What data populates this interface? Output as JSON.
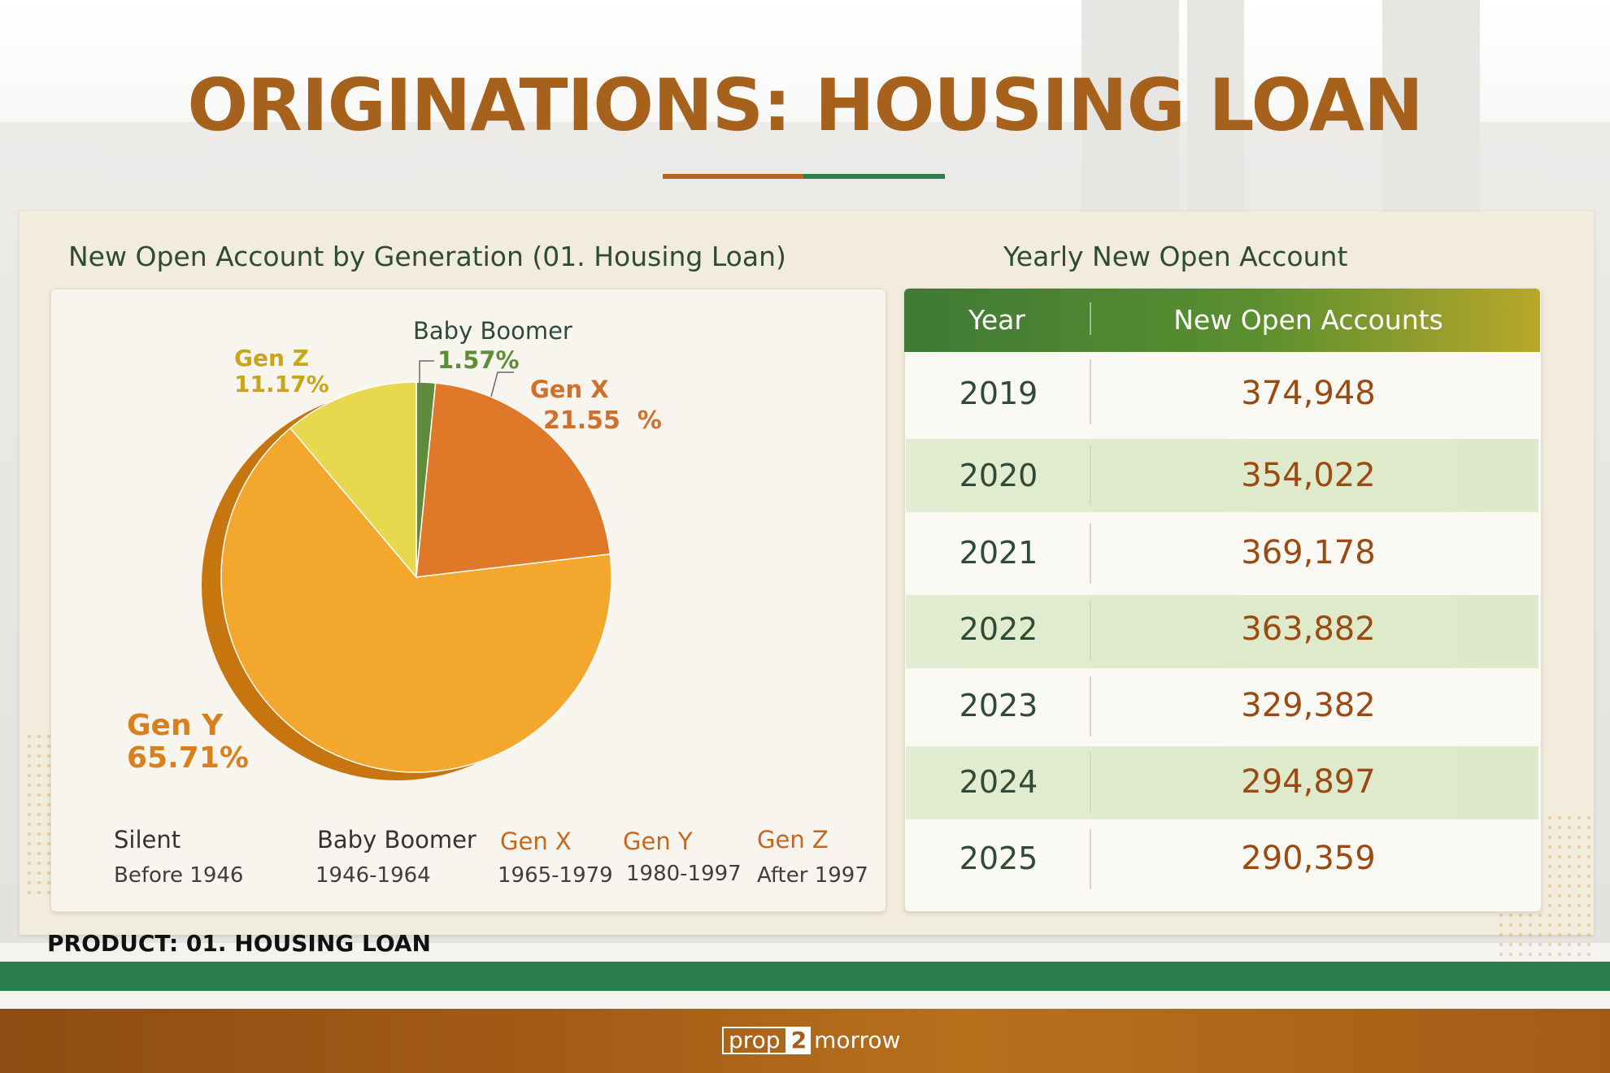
{
  "title": "ORIGINATIONS: HOUSING LOAN",
  "colors": {
    "title": "#a6611c",
    "accent_green": "#2e7d4f",
    "accent_brown": "#a35b17"
  },
  "chart_data": [
    {
      "type": "pie",
      "title": "New Open Account by Generation (01. Housing Loan)",
      "labels": [
        "Baby Boomer",
        "Gen X",
        "Gen Y",
        "Gen Z"
      ],
      "values": [
        1.57,
        21.55,
        65.71,
        11.17
      ],
      "value_labels": [
        "1.57%",
        "21.55  %",
        "65.71%",
        "11.17%"
      ],
      "unit": "%",
      "colors": [
        "#5f8c3a",
        "#e0782a",
        "#f3a72c",
        "#e8d84e"
      ],
      "legend": [
        {
          "name": "Silent",
          "range": "Before 1946",
          "color": "#333333"
        },
        {
          "name": "Baby Boomer",
          "range": "1946-1964",
          "color": "#333333"
        },
        {
          "name": "Gen X",
          "range": "1965-1979",
          "color": "#c8661e"
        },
        {
          "name": "Gen Y",
          "range": "1980-1997",
          "color": "#c8661e"
        },
        {
          "name": "Gen Z",
          "range": "After 1997",
          "color": "#c8661e"
        }
      ]
    },
    {
      "type": "table",
      "title": "Yearly New Open Account",
      "columns": [
        "Year",
        "New Open Accounts"
      ],
      "rows": [
        [
          "2019",
          "374,948"
        ],
        [
          "2020",
          "354,022"
        ],
        [
          "2021",
          "369,178"
        ],
        [
          "2022",
          "363,882"
        ],
        [
          "2023",
          "329,382"
        ],
        [
          "2024",
          "294,897"
        ],
        [
          "2025",
          "290,359"
        ]
      ]
    }
  ],
  "footer": {
    "product": "PRODUCT: 01. HOUSING LOAN",
    "logo_part1": "prop",
    "logo_part2": "2",
    "logo_part3": "morrow"
  }
}
